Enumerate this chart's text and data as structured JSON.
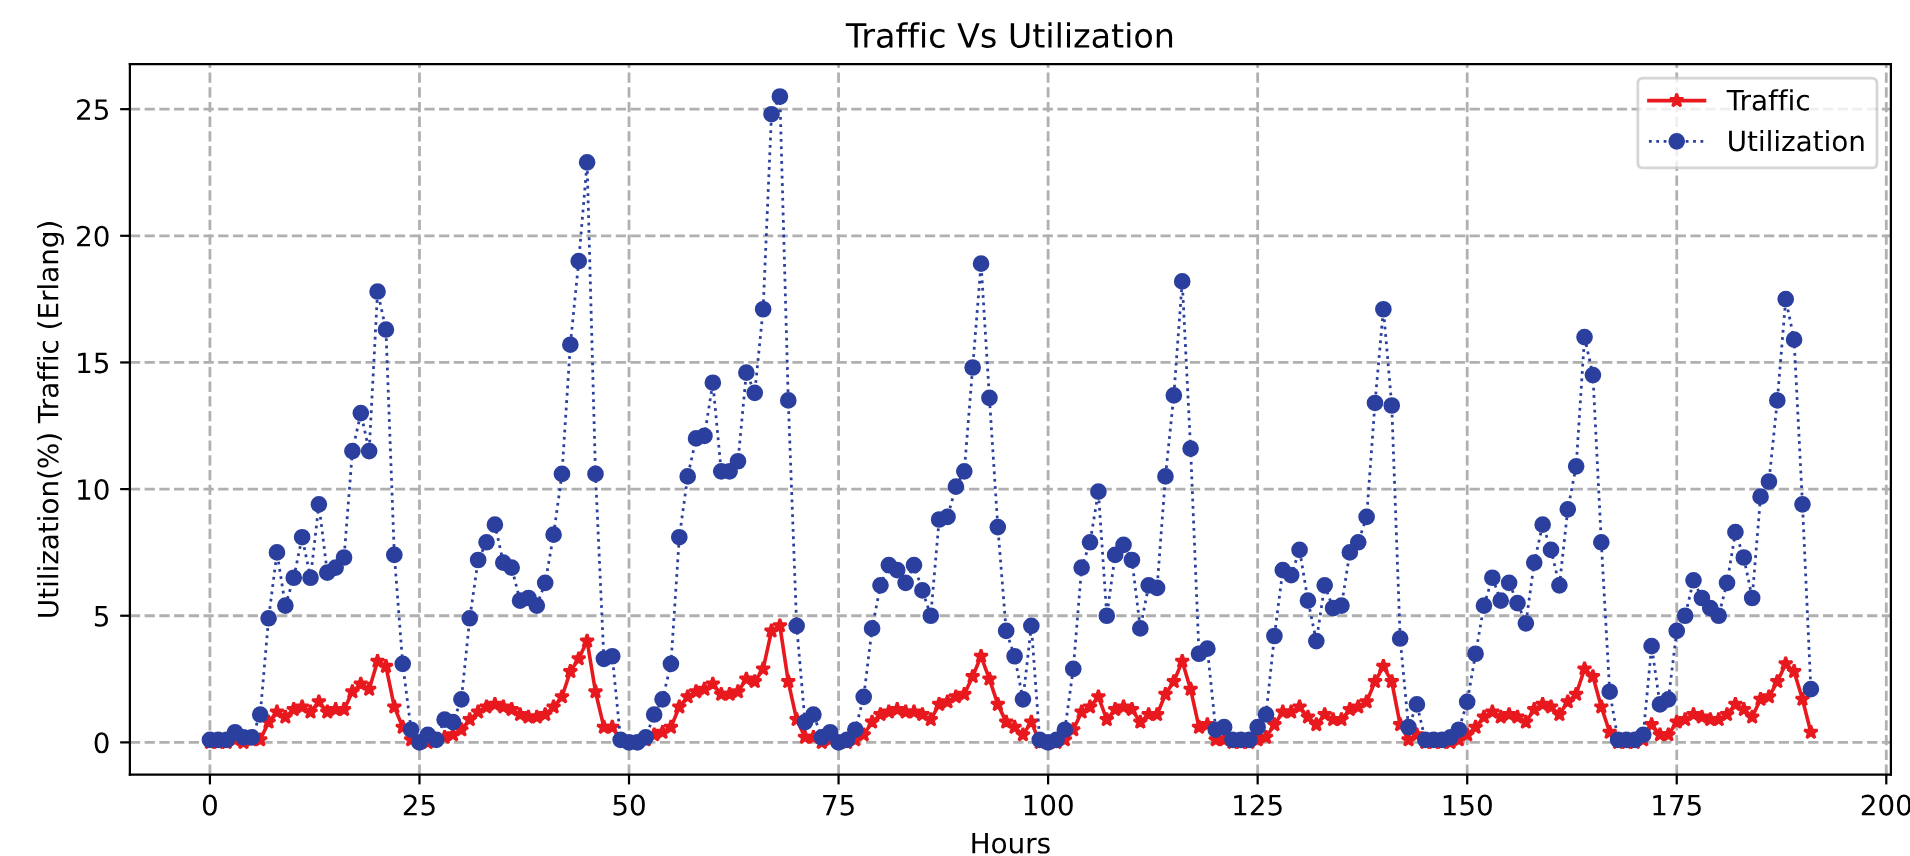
{
  "chart_data": {
    "type": "line",
    "title": "Traffic Vs Utilization",
    "xlabel": "Hours",
    "ylabel": "Utilization(%) Traffic (Erlang)",
    "x": [
      0,
      1,
      2,
      3,
      4,
      5,
      6,
      7,
      8,
      9,
      10,
      11,
      12,
      13,
      14,
      15,
      16,
      17,
      18,
      19,
      20,
      21,
      22,
      23,
      24,
      25,
      26,
      27,
      28,
      29,
      30,
      31,
      32,
      33,
      34,
      35,
      36,
      37,
      38,
      39,
      40,
      41,
      42,
      43,
      44,
      45,
      46,
      47,
      48,
      49,
      50,
      51,
      52,
      53,
      54,
      55,
      56,
      57,
      58,
      59,
      60,
      61,
      62,
      63,
      64,
      65,
      66,
      67,
      68,
      69,
      70,
      71,
      72,
      73,
      74,
      75,
      76,
      77,
      78,
      79,
      80,
      81,
      82,
      83,
      84,
      85,
      86,
      87,
      88,
      89,
      90,
      91,
      92,
      93,
      94,
      95,
      96,
      97,
      98,
      99,
      100,
      101,
      102,
      103,
      104,
      105,
      106,
      107,
      108,
      109,
      110,
      111,
      112,
      113,
      114,
      115,
      116,
      117,
      118,
      119,
      120,
      121,
      122,
      123,
      124,
      125,
      126,
      127,
      128,
      129,
      130,
      131,
      132,
      133,
      134,
      135,
      136,
      137,
      138,
      139,
      140,
      141,
      142,
      143,
      144,
      145,
      146,
      147,
      148,
      149,
      150,
      151,
      152,
      153,
      154,
      155,
      156,
      157,
      158,
      159,
      160,
      161,
      162,
      163,
      164,
      165,
      166,
      167,
      168,
      169,
      170,
      171,
      172,
      173,
      174,
      175,
      176,
      177,
      178,
      179,
      180,
      181,
      182,
      183,
      184,
      185,
      186,
      187,
      188,
      189,
      190,
      191
    ],
    "series": [
      {
        "name": "Traffic",
        "color": "#e8191e",
        "marker": "star",
        "line_style": "solid",
        "values": [
          0.0,
          0.0,
          0.0,
          0.1,
          0.0,
          0.1,
          0.1,
          0.8,
          1.2,
          1.0,
          1.3,
          1.4,
          1.2,
          1.6,
          1.2,
          1.3,
          1.3,
          2.0,
          2.3,
          2.1,
          3.2,
          3.0,
          1.4,
          0.6,
          0.1,
          0.0,
          0.0,
          0.1,
          0.2,
          0.3,
          0.5,
          0.9,
          1.2,
          1.4,
          1.5,
          1.4,
          1.3,
          1.1,
          1.0,
          1.0,
          1.1,
          1.4,
          1.8,
          2.8,
          3.3,
          4.0,
          2.0,
          0.6,
          0.6,
          0.1,
          0.0,
          0.0,
          0.1,
          0.3,
          0.4,
          0.6,
          1.4,
          1.8,
          2.0,
          2.1,
          2.3,
          1.9,
          1.9,
          2.0,
          2.5,
          2.4,
          2.9,
          4.4,
          4.6,
          2.4,
          0.9,
          0.2,
          0.2,
          0.0,
          0.1,
          0.0,
          0.0,
          0.1,
          0.3,
          0.8,
          1.1,
          1.2,
          1.3,
          1.2,
          1.2,
          1.1,
          0.9,
          1.5,
          1.6,
          1.8,
          1.9,
          2.6,
          3.4,
          2.5,
          1.5,
          0.8,
          0.6,
          0.3,
          0.8,
          0.0,
          0.0,
          0.0,
          0.1,
          0.5,
          1.2,
          1.4,
          1.8,
          0.9,
          1.3,
          1.4,
          1.3,
          0.8,
          1.1,
          1.1,
          1.9,
          2.4,
          3.2,
          2.1,
          0.6,
          0.7,
          0.1,
          0.1,
          0.0,
          0.0,
          0.0,
          0.1,
          0.2,
          0.7,
          1.2,
          1.2,
          1.4,
          1.0,
          0.7,
          1.1,
          0.9,
          0.9,
          1.3,
          1.4,
          1.6,
          2.4,
          3.0,
          2.4,
          0.7,
          0.1,
          0.3,
          0.0,
          0.0,
          0.0,
          0.0,
          0.1,
          0.3,
          0.6,
          1.0,
          1.2,
          1.0,
          1.1,
          1.0,
          0.8,
          1.3,
          1.5,
          1.4,
          1.1,
          1.6,
          1.9,
          2.9,
          2.6,
          1.4,
          0.4,
          0.0,
          0.0,
          0.0,
          0.1,
          0.7,
          0.3,
          0.3,
          0.8,
          0.9,
          1.1,
          1.0,
          0.9,
          0.9,
          1.1,
          1.5,
          1.3,
          1.0,
          1.7,
          1.8,
          2.4,
          3.1,
          2.8,
          1.7,
          0.4
        ]
      },
      {
        "name": "Utilization",
        "color": "#2b3f9e",
        "marker": "circle",
        "line_style": "dotted",
        "values": [
          0.1,
          0.1,
          0.1,
          0.4,
          0.2,
          0.2,
          1.1,
          4.9,
          7.5,
          5.4,
          6.5,
          8.1,
          6.5,
          9.4,
          6.7,
          6.9,
          7.3,
          11.5,
          13.0,
          11.5,
          17.8,
          16.3,
          7.4,
          3.1,
          0.5,
          0.0,
          0.3,
          0.1,
          0.9,
          0.8,
          1.7,
          4.9,
          7.2,
          7.9,
          8.6,
          7.1,
          6.9,
          5.6,
          5.7,
          5.4,
          6.3,
          8.2,
          10.6,
          15.7,
          19.0,
          22.9,
          10.6,
          3.3,
          3.4,
          0.1,
          0.0,
          0.0,
          0.2,
          1.1,
          1.7,
          3.1,
          8.1,
          10.5,
          12.0,
          12.1,
          14.2,
          10.7,
          10.7,
          11.1,
          14.6,
          13.8,
          17.1,
          24.8,
          25.5,
          13.5,
          4.6,
          0.8,
          1.1,
          0.2,
          0.4,
          0.0,
          0.1,
          0.5,
          1.8,
          4.5,
          6.2,
          7.0,
          6.8,
          6.3,
          7.0,
          6.0,
          5.0,
          8.8,
          8.9,
          10.1,
          10.7,
          14.8,
          18.9,
          13.6,
          8.5,
          4.4,
          3.4,
          1.7,
          4.6,
          0.1,
          0.0,
          0.1,
          0.5,
          2.9,
          6.9,
          7.9,
          9.9,
          5.0,
          7.4,
          7.8,
          7.2,
          4.5,
          6.2,
          6.1,
          10.5,
          13.7,
          18.2,
          11.6,
          3.5,
          3.7,
          0.5,
          0.6,
          0.1,
          0.1,
          0.1,
          0.6,
          1.1,
          4.2,
          6.8,
          6.6,
          7.6,
          5.6,
          4.0,
          6.2,
          5.3,
          5.4,
          7.5,
          7.9,
          8.9,
          13.4,
          17.1,
          13.3,
          4.1,
          0.6,
          1.5,
          0.1,
          0.1,
          0.1,
          0.2,
          0.5,
          1.6,
          3.5,
          5.4,
          6.5,
          5.6,
          6.3,
          5.5,
          4.7,
          7.1,
          8.6,
          7.6,
          6.2,
          9.2,
          10.9,
          16.0,
          14.5,
          7.9,
          2.0,
          0.1,
          0.1,
          0.1,
          0.3,
          3.8,
          1.5,
          1.7,
          4.4,
          5.0,
          6.4,
          5.7,
          5.3,
          5.0,
          6.3,
          8.3,
          7.3,
          5.7,
          9.7,
          10.3,
          13.5,
          17.5,
          15.9,
          9.4,
          2.1
        ]
      }
    ],
    "xlim": [
      -9.55,
      200.55
    ],
    "xticks": [
      0,
      25,
      50,
      75,
      100,
      125,
      150,
      175,
      200
    ],
    "ylim": [
      -1.275,
      26.775
    ],
    "yticks": [
      0,
      5,
      10,
      15,
      20,
      25
    ],
    "grid": true,
    "legend": "top right"
  }
}
